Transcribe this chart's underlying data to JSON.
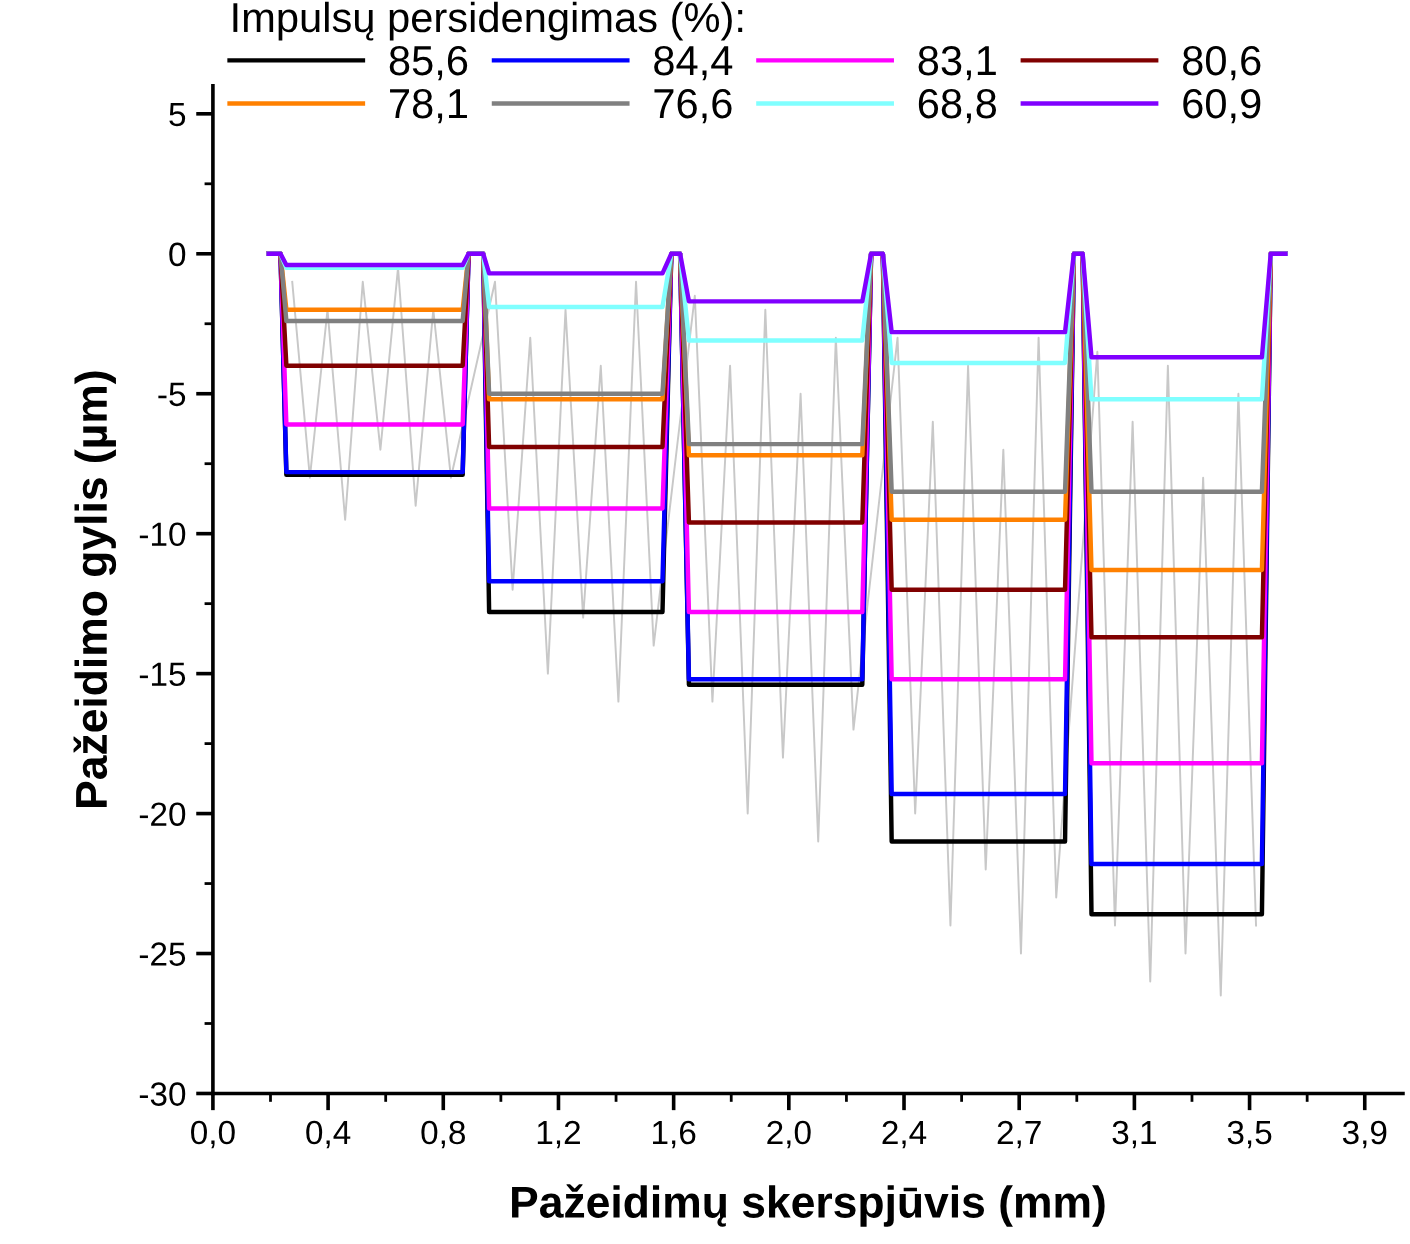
{
  "chart_data": {
    "type": "line",
    "xlabel": "Pažeidimų skerspjūvis (mm)",
    "ylabel": "Pažeidimo gylis (µm)",
    "legend_title": "Impulsų persidengimas (%):",
    "legend": "top",
    "x": [
      0.19,
      0.23,
      0.25,
      0.85,
      0.87,
      0.92,
      0.94,
      1.53,
      1.56,
      1.59,
      1.62,
      2.21,
      2.24,
      2.28,
      2.31,
      2.9,
      2.93,
      2.96,
      2.99,
      3.57,
      3.6,
      3.65
    ],
    "xlim": [
      0,
      4.05
    ],
    "ylim": [
      -30,
      6
    ],
    "xticks": [
      {
        "value": 0,
        "label": "0,0"
      },
      {
        "value": 0.392,
        "label": "0,4"
      },
      {
        "value": 0.784,
        "label": "0,8"
      },
      {
        "value": 1.176,
        "label": "1,2"
      },
      {
        "value": 1.568,
        "label": "1,6"
      },
      {
        "value": 1.96,
        "label": "2,0"
      },
      {
        "value": 2.352,
        "label": "2,4"
      },
      {
        "value": 2.744,
        "label": "2,7"
      },
      {
        "value": 3.136,
        "label": "3,1"
      },
      {
        "value": 3.528,
        "label": "3,5"
      },
      {
        "value": 3.92,
        "label": "3,9"
      }
    ],
    "yticks": [
      -30,
      -25,
      -20,
      -15,
      -10,
      -5,
      0,
      5
    ],
    "grid": false,
    "series": [
      {
        "color": "#c8c8c8",
        "x": [
          0.27,
          0.33,
          0.39,
          0.45,
          0.51,
          0.57,
          0.63,
          0.69,
          0.75,
          0.81,
          0.96,
          1.02,
          1.08,
          1.14,
          1.2,
          1.26,
          1.32,
          1.38,
          1.44,
          1.5,
          1.64,
          1.7,
          1.76,
          1.82,
          1.88,
          1.94,
          2.0,
          2.06,
          2.12,
          2.18,
          2.33,
          2.39,
          2.45,
          2.51,
          2.57,
          2.63,
          2.69,
          2.75,
          2.81,
          2.87,
          3.01,
          3.07,
          3.13,
          3.19,
          3.25,
          3.31,
          3.37,
          3.43,
          3.49,
          3.55
        ],
        "values": [
          -1,
          -8,
          -2,
          -9.5,
          -1,
          -7,
          -0.5,
          -9,
          -2,
          -8,
          -1,
          -12,
          -3,
          -15,
          -2,
          -13,
          -4,
          -16,
          -1,
          -14,
          -1.5,
          -16,
          -4,
          -20,
          -2,
          -18,
          -5,
          -21,
          -3,
          -17,
          -3,
          -20,
          -6,
          -24,
          -4,
          -22,
          -7,
          -25,
          -3,
          -23,
          -3.5,
          -24,
          -6,
          -26,
          -4,
          -25,
          -8,
          -26.5,
          -5,
          -24
        ]
      },
      {
        "name": "85,6",
        "color": "#000000",
        "values": [
          0,
          0,
          -7.9,
          -7.9,
          0,
          0,
          -12.8,
          -12.8,
          0,
          0,
          -15.4,
          -15.4,
          0,
          0,
          -21.0,
          -21.0,
          0,
          0,
          -23.6,
          -23.6,
          0,
          0
        ]
      },
      {
        "name": "84,4",
        "color": "#0000ff",
        "values": [
          0,
          0,
          -7.8,
          -7.8,
          0,
          0,
          -11.7,
          -11.7,
          0,
          0,
          -15.2,
          -15.2,
          0,
          0,
          -19.3,
          -19.3,
          0,
          0,
          -21.8,
          -21.8,
          0,
          0
        ]
      },
      {
        "name": "83,1",
        "color": "#ff00ff",
        "values": [
          0,
          0,
          -6.1,
          -6.1,
          0,
          0,
          -9.1,
          -9.1,
          0,
          0,
          -12.8,
          -12.8,
          0,
          0,
          -15.2,
          -15.2,
          0,
          0,
          -18.2,
          -18.2,
          0,
          0
        ]
      },
      {
        "name": "80,6",
        "color": "#800000",
        "values": [
          0,
          0,
          -4.0,
          -4.0,
          0,
          0,
          -6.9,
          -6.9,
          0,
          0,
          -9.6,
          -9.6,
          0,
          0,
          -12.0,
          -12.0,
          0,
          0,
          -13.7,
          -13.7,
          0,
          0
        ]
      },
      {
        "name": "78,1",
        "color": "#ff8000",
        "values": [
          0,
          0,
          -2.0,
          -2.0,
          0,
          0,
          -5.2,
          -5.2,
          0,
          0,
          -7.2,
          -7.2,
          0,
          0,
          -9.5,
          -9.5,
          0,
          0,
          -11.3,
          -11.3,
          0,
          0
        ]
      },
      {
        "name": "76,6",
        "color": "#808080",
        "values": [
          0,
          0,
          -2.4,
          -2.4,
          0,
          0,
          -5.0,
          -5.0,
          0,
          0,
          -6.8,
          -6.8,
          0,
          0,
          -8.5,
          -8.5,
          0,
          0,
          -8.5,
          -8.5,
          0,
          0
        ]
      },
      {
        "name": "68,8",
        "color": "#80ffff",
        "values": [
          0,
          0,
          -0.5,
          -0.5,
          0,
          0,
          -1.9,
          -1.9,
          0,
          0,
          -3.1,
          -3.1,
          0,
          0,
          -3.9,
          -3.9,
          0,
          0,
          -5.2,
          -5.2,
          0,
          0
        ]
      },
      {
        "name": "60,9",
        "color": "#8000ff",
        "values": [
          0,
          0,
          -0.4,
          -0.4,
          0,
          0,
          -0.7,
          -0.7,
          0,
          0,
          -1.7,
          -1.7,
          0,
          0,
          -2.8,
          -2.8,
          0,
          0,
          -3.7,
          -3.7,
          0,
          0
        ]
      }
    ]
  }
}
